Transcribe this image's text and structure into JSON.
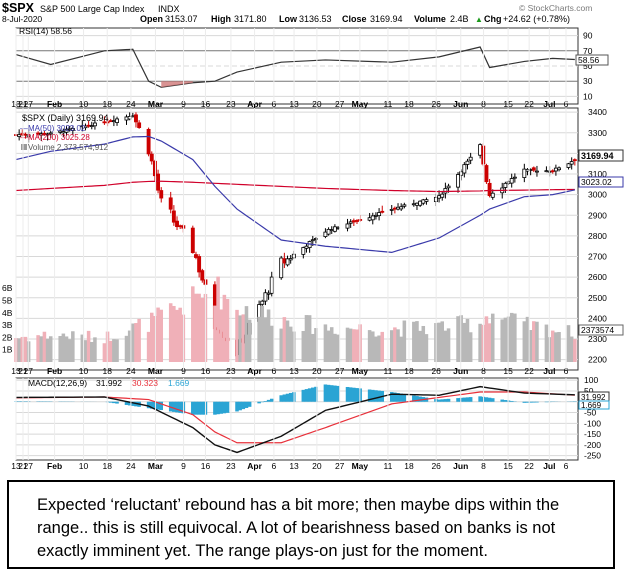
{
  "header": {
    "symbol": "$SPX",
    "name": "S&P 500 Large Cap Index",
    "exchange": "INDX",
    "date": "8-Jul-2020",
    "open_label": "Open",
    "open": "3153.07",
    "high_label": "High",
    "high": "3171.80",
    "low_label": "Low",
    "low": "3136.53",
    "close_label": "Close",
    "close": "3169.94",
    "volume_label": "Volume",
    "volume": "2.4B",
    "chg_label": "Chg",
    "chg": "+24.62 (+0.78%)",
    "watermark": "© StockCharts.com",
    "arrow": "▲"
  },
  "rsi": {
    "label": "RSI(14) 58.56",
    "value_tag": "58.56",
    "value": 58.56,
    "ticks": [
      "90",
      "70",
      "50",
      "30",
      "10"
    ],
    "tick_values": [
      90,
      70,
      50,
      30,
      10
    ]
  },
  "price": {
    "legend_main": "$SPX (Daily) 3169.94",
    "legend_ma50": "MA(50) 3023.02",
    "legend_ma200": "MA(200) 3025.28",
    "legend_volume": "Volume 2,373,574,912",
    "last_tag": "3169.94",
    "ma_tag": "3023.02",
    "volume_tag": "2373574",
    "y_ticks": [
      "3400",
      "3300",
      "3200",
      "3100",
      "3000",
      "2900",
      "2800",
      "2700",
      "2600",
      "2500",
      "2400",
      "2300",
      "2200"
    ],
    "y_tick_values": [
      3400,
      3300,
      3200,
      3100,
      3000,
      2900,
      2800,
      2700,
      2600,
      2500,
      2400,
      2300,
      2200
    ],
    "volume_ticks": [
      "6B",
      "5B",
      "4B",
      "3B",
      "2B",
      "1B"
    ],
    "volume_tick_values": [
      6,
      5,
      4,
      3,
      2,
      1
    ]
  },
  "macd": {
    "label": "MACD(12,26,9)",
    "macd_value": "31.992",
    "signal_value": "30.323",
    "hist_value": "1.669",
    "tag1": "31.992",
    "tag2": "1.669",
    "ticks": [
      "100",
      "50",
      "0",
      "-50",
      "-100",
      "-150",
      "-200",
      "-250"
    ],
    "tick_values": [
      100,
      50,
      0,
      -50,
      -100,
      -150,
      -200,
      -250
    ]
  },
  "x_axis": {
    "labels": [
      "13",
      "21",
      "27",
      "Feb",
      "10",
      "18",
      "24",
      "Mar",
      "9",
      "16",
      "23",
      "Apr",
      "6",
      "13",
      "20",
      "27",
      "May",
      "11",
      "18",
      "26",
      "Jun",
      "8",
      "15",
      "22",
      "Jul",
      "6"
    ],
    "bold": [
      "Feb",
      "Mar",
      "Apr",
      "May",
      "Jun",
      "Jul"
    ]
  },
  "caption": "Expected ‘reluctant’ rebound has a bit more; then maybe dips within the range.. this is still equivocal. A lot of bearishness based on banks is not exactly imminent yet. The range plays-on just for the moment.",
  "colors": {
    "up": "#000000",
    "down": "#cc0000",
    "ma50": "#3a3aaa",
    "ma200": "#d0002a",
    "vol_up": "#b8b8b8",
    "vol_down": "#f0b0b8",
    "hist": "#2aa4d4",
    "signal": "#e8303a",
    "grid": "#d8d8d8"
  },
  "chart_data": [
    {
      "type": "line",
      "title": "RSI(14) 58.56",
      "ylim": [
        0,
        100
      ],
      "x": [
        "2020-01-13",
        "2020-01-24",
        "2020-02-10",
        "2020-02-19",
        "2020-02-24",
        "2020-02-28",
        "2020-03-09",
        "2020-03-16",
        "2020-03-23",
        "2020-04-06",
        "2020-04-20",
        "2020-05-11",
        "2020-05-26",
        "2020-06-08",
        "2020-06-11",
        "2020-06-22",
        "2020-07-01",
        "2020-07-08"
      ],
      "series": [
        {
          "name": "RSI(14)",
          "values": [
            65,
            52,
            70,
            72,
            30,
            22,
            28,
            30,
            42,
            55,
            58,
            55,
            62,
            75,
            48,
            56,
            60,
            58.56
          ]
        }
      ]
    },
    {
      "type": "line",
      "title": "$SPX (Daily) 3169.94",
      "ylim": [
        2150,
        3420
      ],
      "x": [
        "2020-01-13",
        "2020-01-24",
        "2020-02-10",
        "2020-02-19",
        "2020-02-24",
        "2020-02-28",
        "2020-03-09",
        "2020-03-16",
        "2020-03-23",
        "2020-04-06",
        "2020-04-20",
        "2020-05-11",
        "2020-05-26",
        "2020-06-08",
        "2020-06-11",
        "2020-06-22",
        "2020-07-01",
        "2020-07-08"
      ],
      "series": [
        {
          "name": "$SPX",
          "values": [
            3290,
            3296,
            3352,
            3386,
            3225,
            2954,
            2746,
            2386,
            2237,
            2664,
            2824,
            2930,
            2991,
            3232,
            3002,
            3118,
            3116,
            3169.94
          ]
        },
        {
          "name": "MA(50)",
          "values": [
            3170,
            3210,
            3245,
            3280,
            3282,
            3260,
            3170,
            3040,
            2930,
            2780,
            2750,
            2720,
            2790,
            2900,
            2930,
            2990,
            3000,
            3023.02
          ]
        },
        {
          "name": "MA(200)",
          "values": [
            3020,
            3030,
            3045,
            3060,
            3064,
            3065,
            3060,
            3055,
            3050,
            3040,
            3030,
            3020,
            3015,
            3018,
            3020,
            3022,
            3024,
            3025.28
          ]
        }
      ]
    },
    {
      "type": "bar",
      "title": "Volume 2,373,574,912",
      "ylim": [
        0,
        6.5
      ],
      "x": [
        "2020-01-13",
        "2020-01-24",
        "2020-02-10",
        "2020-02-24",
        "2020-03-09",
        "2020-03-16",
        "2020-03-23",
        "2020-04-06",
        "2020-04-20",
        "2020-05-11",
        "2020-05-26",
        "2020-06-08",
        "2020-06-11",
        "2020-06-22",
        "2020-07-08"
      ],
      "values": [
        2.0,
        2.2,
        2.0,
        3.2,
        5.0,
        6.0,
        4.5,
        3.5,
        2.8,
        2.7,
        2.9,
        3.2,
        4.0,
        3.0,
        2.37
      ]
    },
    {
      "type": "line",
      "title": "MACD(12,26,9) 31.992, 30.323, 1.669",
      "ylim": [
        -270,
        110
      ],
      "x": [
        "2020-01-13",
        "2020-02-10",
        "2020-02-24",
        "2020-03-09",
        "2020-03-16",
        "2020-03-23",
        "2020-04-06",
        "2020-04-20",
        "2020-05-11",
        "2020-05-26",
        "2020-06-08",
        "2020-06-22",
        "2020-07-08"
      ],
      "series": [
        {
          "name": "MACD",
          "values": [
            20,
            22,
            -20,
            -120,
            -200,
            -235,
            -160,
            -40,
            35,
            30,
            70,
            40,
            31.992
          ]
        },
        {
          "name": "Signal",
          "values": [
            18,
            22,
            10,
            -60,
            -140,
            -190,
            -190,
            -120,
            -10,
            20,
            45,
            45,
            30.323
          ]
        },
        {
          "name": "Histogram",
          "values": [
            2,
            0,
            -30,
            -60,
            -60,
            -45,
            30,
            80,
            45,
            10,
            25,
            -5,
            1.669
          ]
        }
      ]
    }
  ]
}
